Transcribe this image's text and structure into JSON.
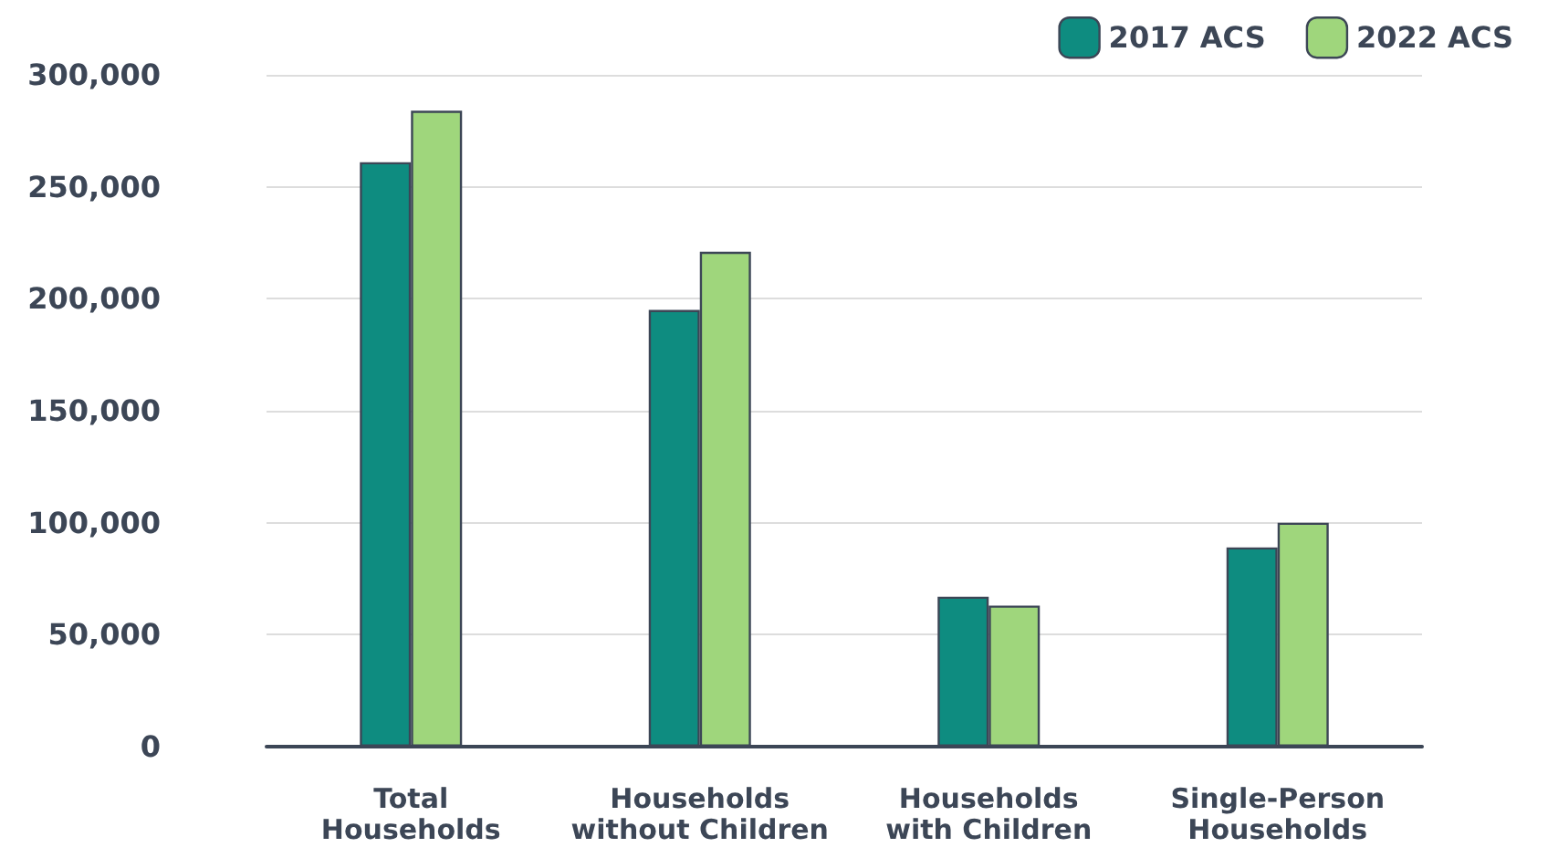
{
  "chart_data": {
    "type": "bar",
    "categories": [
      "Total\nHouseholds",
      "Households\nwithout Children",
      "Households\nwith Children",
      "Single-Person\nHouseholds"
    ],
    "series": [
      {
        "name": "2017 ACS",
        "color": "#0e8c80",
        "values": [
          261000,
          195000,
          67000,
          89000
        ]
      },
      {
        "name": "2022 ACS",
        "color": "#9fd67c",
        "values": [
          284000,
          221000,
          63000,
          100000
        ]
      }
    ],
    "ylim": [
      0,
      300000
    ],
    "yticks": [
      0,
      {
        "value": 50000,
        "label": "50,000"
      },
      {
        "value": 100000,
        "label": "100,000"
      },
      {
        "value": 150000,
        "label": "150,000"
      },
      {
        "value": 200000,
        "label": "200,000"
      },
      {
        "value": 250000,
        "label": "250,000"
      },
      {
        "value": 300000,
        "label": "300,000"
      }
    ],
    "grid": "y",
    "legend": "top right"
  }
}
